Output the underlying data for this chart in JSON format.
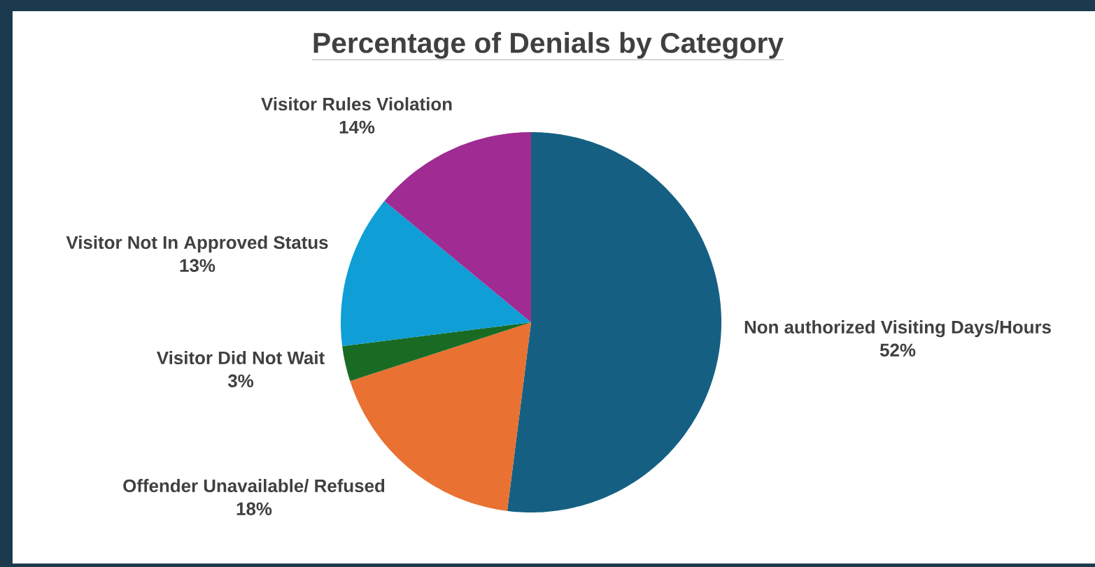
{
  "chart_data": {
    "type": "pie",
    "title": "Percentage of Denials by Category",
    "categories": [
      "Non authorized Visiting Days/Hours",
      "Offender Unavailable/ Refused",
      "Visitor Did Not Wait",
      "Visitor Not In Approved Status",
      "Visitor Rules Violation"
    ],
    "values": [
      52,
      18,
      3,
      13,
      14
    ],
    "value_labels": [
      "52%",
      "18%",
      "3%",
      "13%",
      "14%"
    ],
    "colors": [
      "#156082",
      "#e97132",
      "#196b24",
      "#0f9ed5",
      "#a02b93"
    ]
  }
}
